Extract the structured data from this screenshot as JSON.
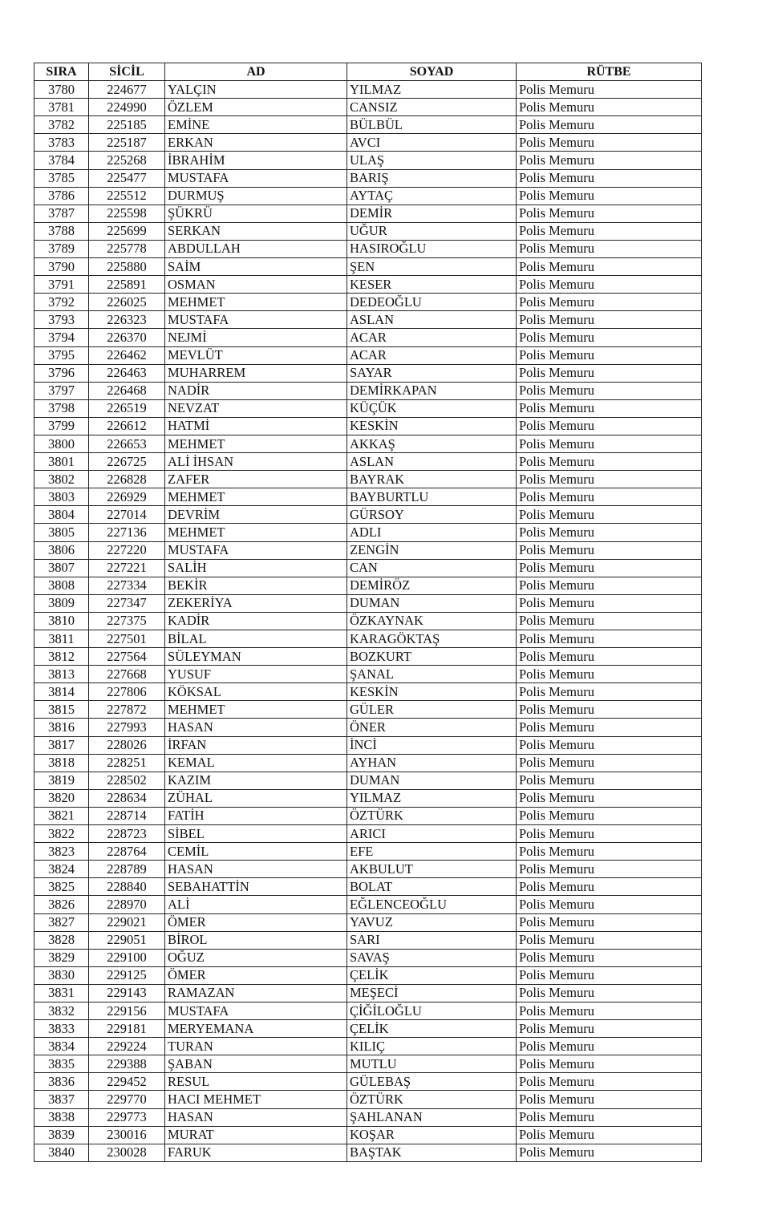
{
  "columns": [
    "SIRA",
    "SİCİL",
    "AD",
    "SOYAD",
    "RÜTBE"
  ],
  "rows": [
    [
      "3780",
      "224677",
      "YALÇIN",
      "YILMAZ",
      "Polis Memuru"
    ],
    [
      "3781",
      "224990",
      "ÖZLEM",
      "CANSIZ",
      "Polis Memuru"
    ],
    [
      "3782",
      "225185",
      "EMİNE",
      "BÜLBÜL",
      "Polis Memuru"
    ],
    [
      "3783",
      "225187",
      "ERKAN",
      "AVCI",
      "Polis Memuru"
    ],
    [
      "3784",
      "225268",
      "İBRAHİM",
      "ULAŞ",
      "Polis Memuru"
    ],
    [
      "3785",
      "225477",
      "MUSTAFA",
      "BARIŞ",
      "Polis Memuru"
    ],
    [
      "3786",
      "225512",
      "DURMUŞ",
      "AYTAÇ",
      "Polis Memuru"
    ],
    [
      "3787",
      "225598",
      "ŞÜKRÜ",
      "DEMİR",
      "Polis Memuru"
    ],
    [
      "3788",
      "225699",
      "SERKAN",
      "UĞUR",
      "Polis Memuru"
    ],
    [
      "3789",
      "225778",
      "ABDULLAH",
      "HASIROĞLU",
      "Polis Memuru"
    ],
    [
      "3790",
      "225880",
      "SAİM",
      "ŞEN",
      "Polis Memuru"
    ],
    [
      "3791",
      "225891",
      "OSMAN",
      "KESER",
      "Polis Memuru"
    ],
    [
      "3792",
      "226025",
      "MEHMET",
      "DEDEOĞLU",
      "Polis Memuru"
    ],
    [
      "3793",
      "226323",
      "MUSTAFA",
      "ASLAN",
      "Polis Memuru"
    ],
    [
      "3794",
      "226370",
      "NEJMİ",
      "ACAR",
      "Polis Memuru"
    ],
    [
      "3795",
      "226462",
      "MEVLÜT",
      "ACAR",
      "Polis Memuru"
    ],
    [
      "3796",
      "226463",
      "MUHARREM",
      "SAYAR",
      "Polis Memuru"
    ],
    [
      "3797",
      "226468",
      "NADİR",
      "DEMİRKAPAN",
      "Polis Memuru"
    ],
    [
      "3798",
      "226519",
      "NEVZAT",
      "KÜÇÜK",
      "Polis Memuru"
    ],
    [
      "3799",
      "226612",
      "HATMİ",
      "KESKİN",
      "Polis Memuru"
    ],
    [
      "3800",
      "226653",
      "MEHMET",
      "AKKAŞ",
      "Polis Memuru"
    ],
    [
      "3801",
      "226725",
      "ALİ İHSAN",
      "ASLAN",
      "Polis Memuru"
    ],
    [
      "3802",
      "226828",
      "ZAFER",
      "BAYRAK",
      "Polis Memuru"
    ],
    [
      "3803",
      "226929",
      "MEHMET",
      "BAYBURTLU",
      "Polis Memuru"
    ],
    [
      "3804",
      "227014",
      "DEVRİM",
      "GÜRSOY",
      "Polis Memuru"
    ],
    [
      "3805",
      "227136",
      "MEHMET",
      "ADLI",
      "Polis Memuru"
    ],
    [
      "3806",
      "227220",
      "MUSTAFA",
      "ZENGİN",
      "Polis Memuru"
    ],
    [
      "3807",
      "227221",
      "SALİH",
      "CAN",
      "Polis Memuru"
    ],
    [
      "3808",
      "227334",
      "BEKİR",
      "DEMİRÖZ",
      "Polis Memuru"
    ],
    [
      "3809",
      "227347",
      "ZEKERİYA",
      "DUMAN",
      "Polis Memuru"
    ],
    [
      "3810",
      "227375",
      "KADİR",
      "ÖZKAYNAK",
      "Polis Memuru"
    ],
    [
      "3811",
      "227501",
      "BİLAL",
      "KARAGÖKTAŞ",
      "Polis Memuru"
    ],
    [
      "3812",
      "227564",
      "SÜLEYMAN",
      "BOZKURT",
      "Polis Memuru"
    ],
    [
      "3813",
      "227668",
      "YUSUF",
      "ŞANAL",
      "Polis Memuru"
    ],
    [
      "3814",
      "227806",
      "KÖKSAL",
      "KESKİN",
      "Polis Memuru"
    ],
    [
      "3815",
      "227872",
      "MEHMET",
      "GÜLER",
      "Polis Memuru"
    ],
    [
      "3816",
      "227993",
      "HASAN",
      "ÖNER",
      "Polis Memuru"
    ],
    [
      "3817",
      "228026",
      "İRFAN",
      "İNCİ",
      "Polis Memuru"
    ],
    [
      "3818",
      "228251",
      "KEMAL",
      "AYHAN",
      "Polis Memuru"
    ],
    [
      "3819",
      "228502",
      "KAZIM",
      "DUMAN",
      "Polis Memuru"
    ],
    [
      "3820",
      "228634",
      "ZÜHAL",
      "YILMAZ",
      "Polis Memuru"
    ],
    [
      "3821",
      "228714",
      "FATİH",
      "ÖZTÜRK",
      "Polis Memuru"
    ],
    [
      "3822",
      "228723",
      "SİBEL",
      "ARICI",
      "Polis Memuru"
    ],
    [
      "3823",
      "228764",
      "CEMİL",
      "EFE",
      "Polis Memuru"
    ],
    [
      "3824",
      "228789",
      "HASAN",
      "AKBULUT",
      "Polis Memuru"
    ],
    [
      "3825",
      "228840",
      "SEBAHATTİN",
      "BOLAT",
      "Polis Memuru"
    ],
    [
      "3826",
      "228970",
      "ALİ",
      "EĞLENCEOĞLU",
      "Polis Memuru"
    ],
    [
      "3827",
      "229021",
      "ÖMER",
      "YAVUZ",
      "Polis Memuru"
    ],
    [
      "3828",
      "229051",
      "BİROL",
      "SARI",
      "Polis Memuru"
    ],
    [
      "3829",
      "229100",
      "OĞUZ",
      "SAVAŞ",
      "Polis Memuru"
    ],
    [
      "3830",
      "229125",
      "ÖMER",
      "ÇELİK",
      "Polis Memuru"
    ],
    [
      "3831",
      "229143",
      "RAMAZAN",
      "MEŞECİ",
      "Polis Memuru"
    ],
    [
      "3832",
      "229156",
      "MUSTAFA",
      "ÇİĞİLOĞLU",
      "Polis Memuru"
    ],
    [
      "3833",
      "229181",
      "MERYEMANA",
      "ÇELİK",
      "Polis Memuru"
    ],
    [
      "3834",
      "229224",
      "TURAN",
      "KILIÇ",
      "Polis Memuru"
    ],
    [
      "3835",
      "229388",
      "ŞABAN",
      "MUTLU",
      "Polis Memuru"
    ],
    [
      "3836",
      "229452",
      "RESUL",
      "GÜLEBAŞ",
      "Polis Memuru"
    ],
    [
      "3837",
      "229770",
      "HACI MEHMET",
      "ÖZTÜRK",
      "Polis Memuru"
    ],
    [
      "3838",
      "229773",
      "HASAN",
      "ŞAHLANAN",
      "Polis Memuru"
    ],
    [
      "3839",
      "230016",
      "MURAT",
      "KOŞAR",
      "Polis Memuru"
    ],
    [
      "3840",
      "230028",
      "FARUK",
      "BAŞTAK",
      "Polis Memuru"
    ]
  ]
}
